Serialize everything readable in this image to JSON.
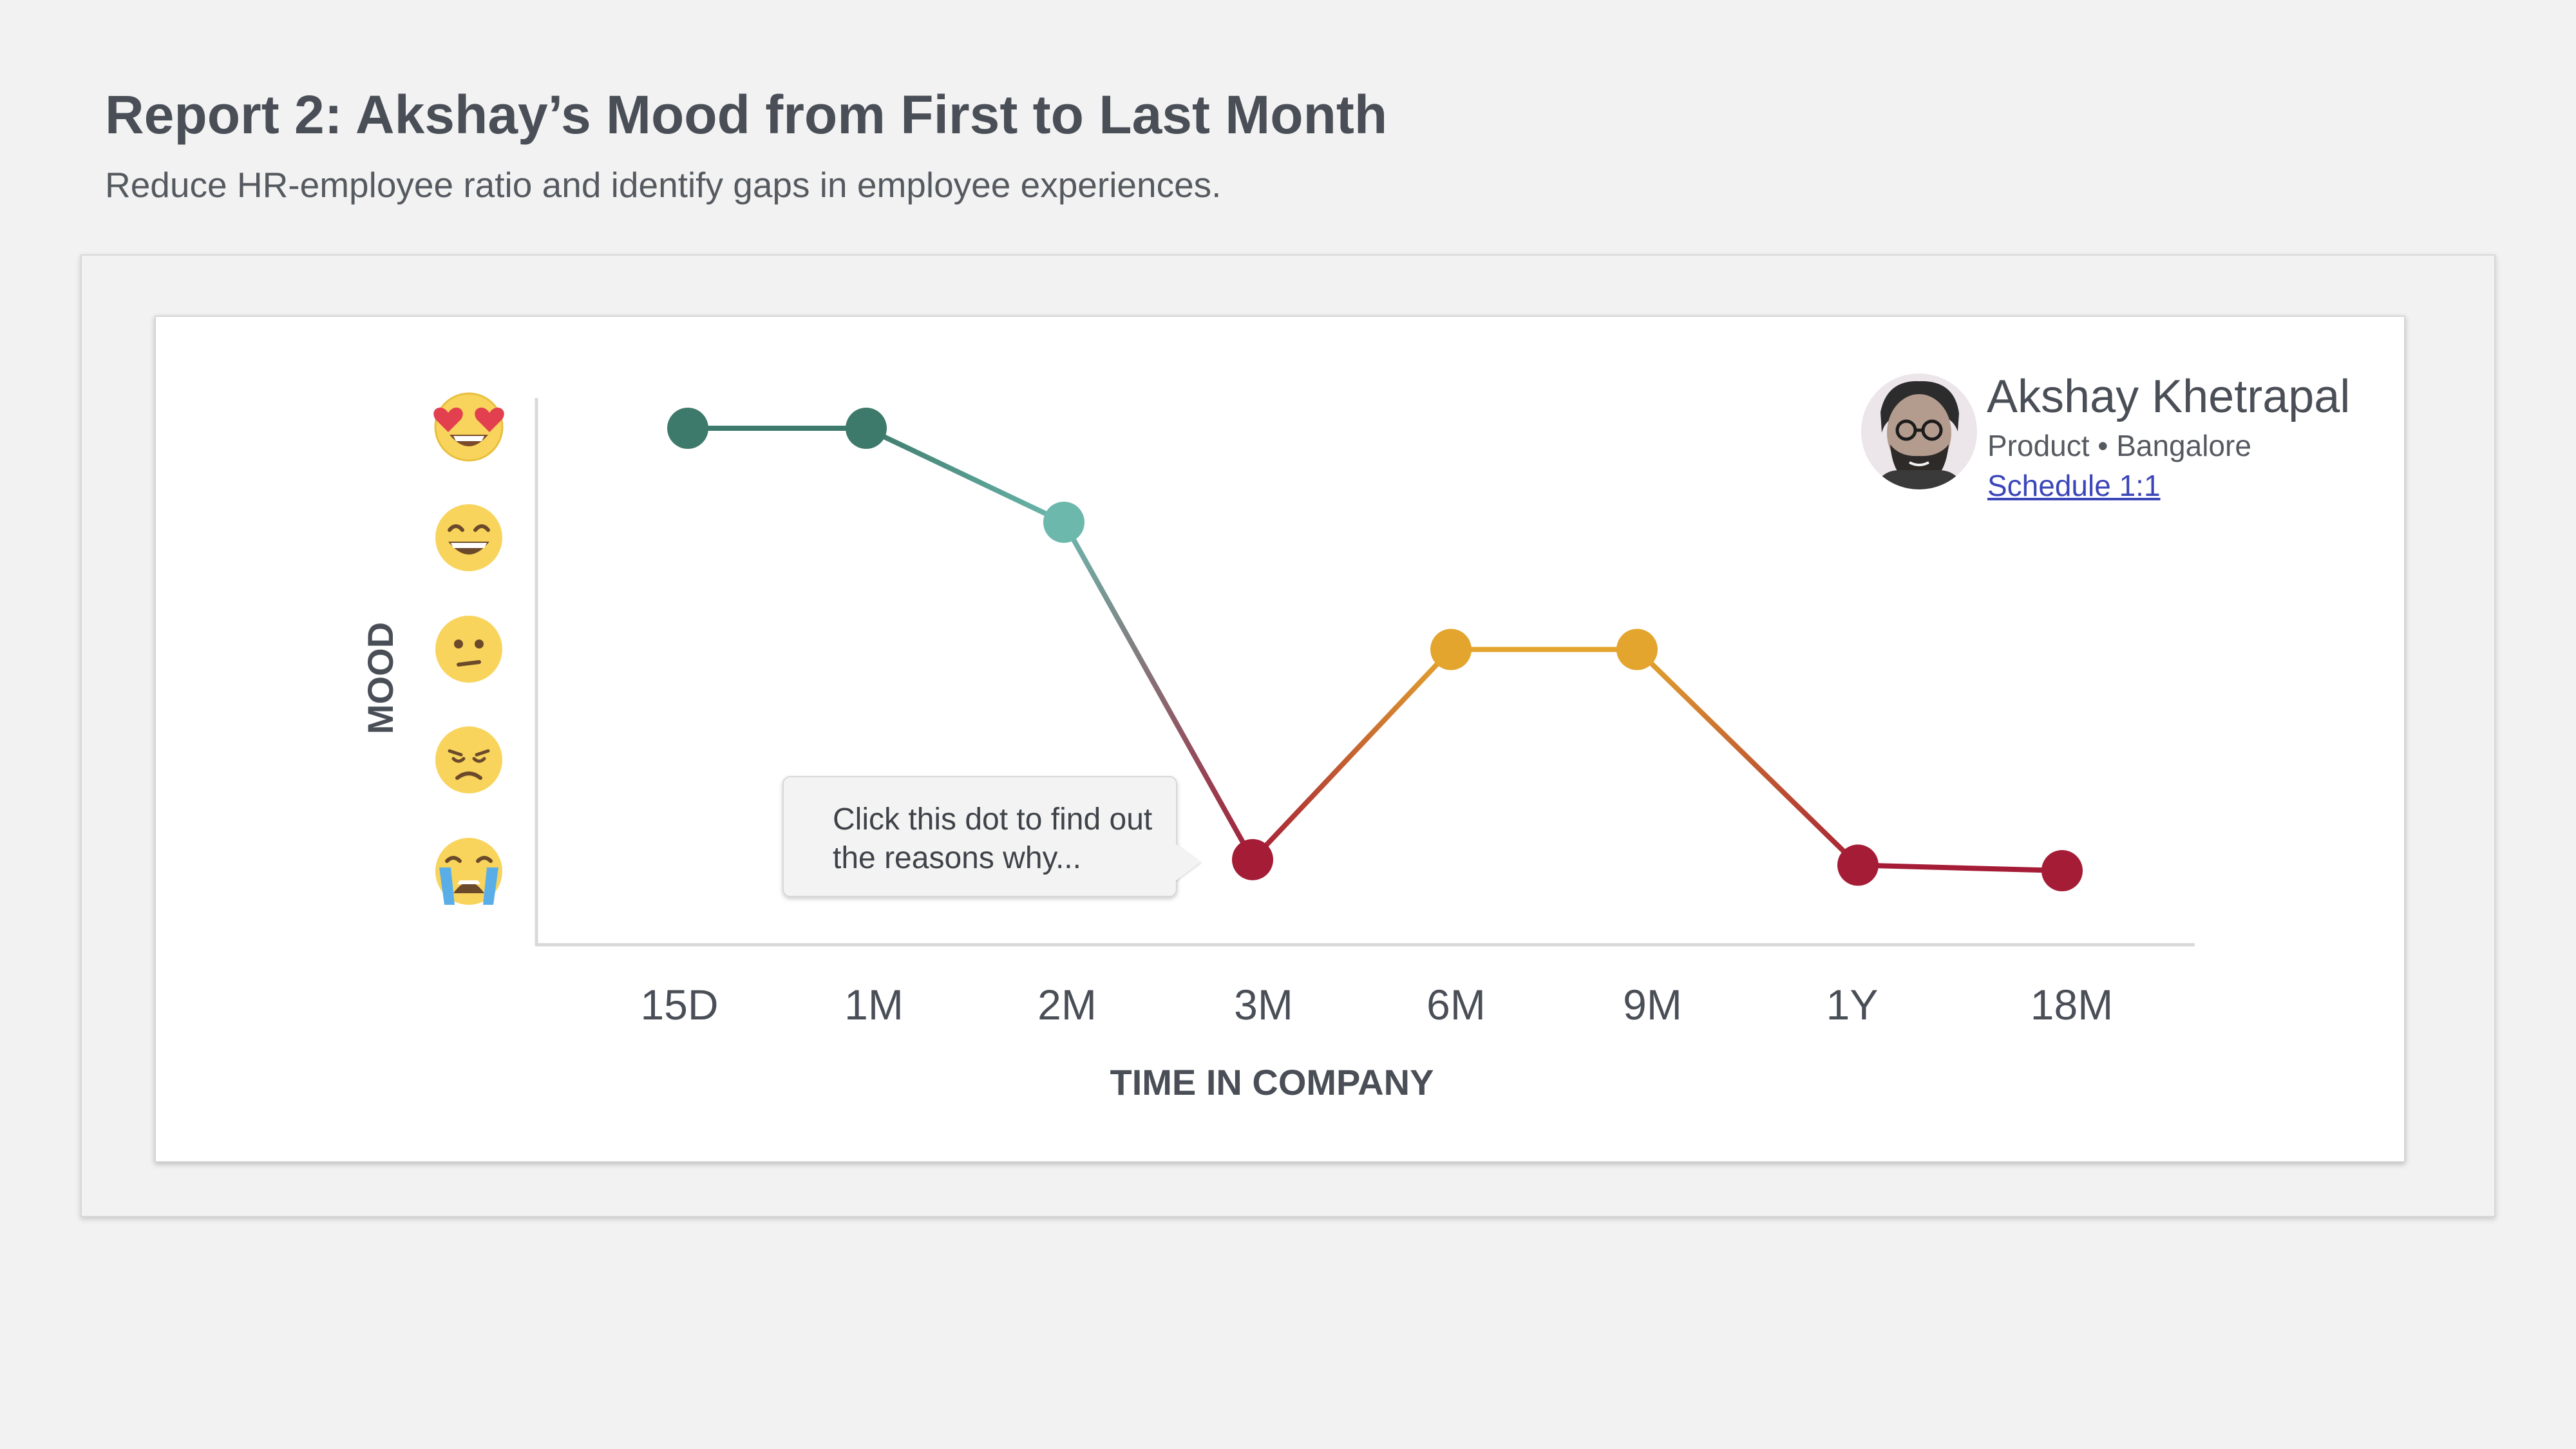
{
  "header": {
    "title_prefix": "Report 2",
    "title_rest": ": Akshay’s Mood from First to Last Month",
    "subtitle": "Reduce HR-employee ratio and identify gaps in employee experiences."
  },
  "profile": {
    "name": "Akshay Khetrapal",
    "meta": "Product • Bangalore",
    "link_label": "Schedule 1:1"
  },
  "callout": {
    "text": "Click this dot to find out the reasons why..."
  },
  "mood_scale": [
    {
      "level": 5,
      "icon": "heart-eyes-face-icon"
    },
    {
      "level": 4,
      "icon": "grinning-face-icon"
    },
    {
      "level": 3,
      "icon": "confused-face-icon"
    },
    {
      "level": 2,
      "icon": "disappointed-face-icon"
    },
    {
      "level": 1,
      "icon": "crying-face-icon"
    }
  ],
  "colors": {
    "high": "#3e7a6b",
    "mid_high": "#6cb8ad",
    "neutral": "#e3a52e",
    "low": "#a51c36",
    "axis": "#d9d9d9",
    "text": "#4a4f57"
  },
  "chart_data": {
    "type": "line",
    "xlabel": "TIME IN COMPANY",
    "ylabel": "MOOD",
    "categories": [
      "15D",
      "1M",
      "2M",
      "3M",
      "6M",
      "9M",
      "1Y",
      "18M"
    ],
    "values": [
      5,
      5,
      4.15,
      1.1,
      3,
      3,
      1.05,
      1
    ],
    "ylim": [
      1,
      5
    ],
    "grid": false,
    "legend": "none"
  }
}
